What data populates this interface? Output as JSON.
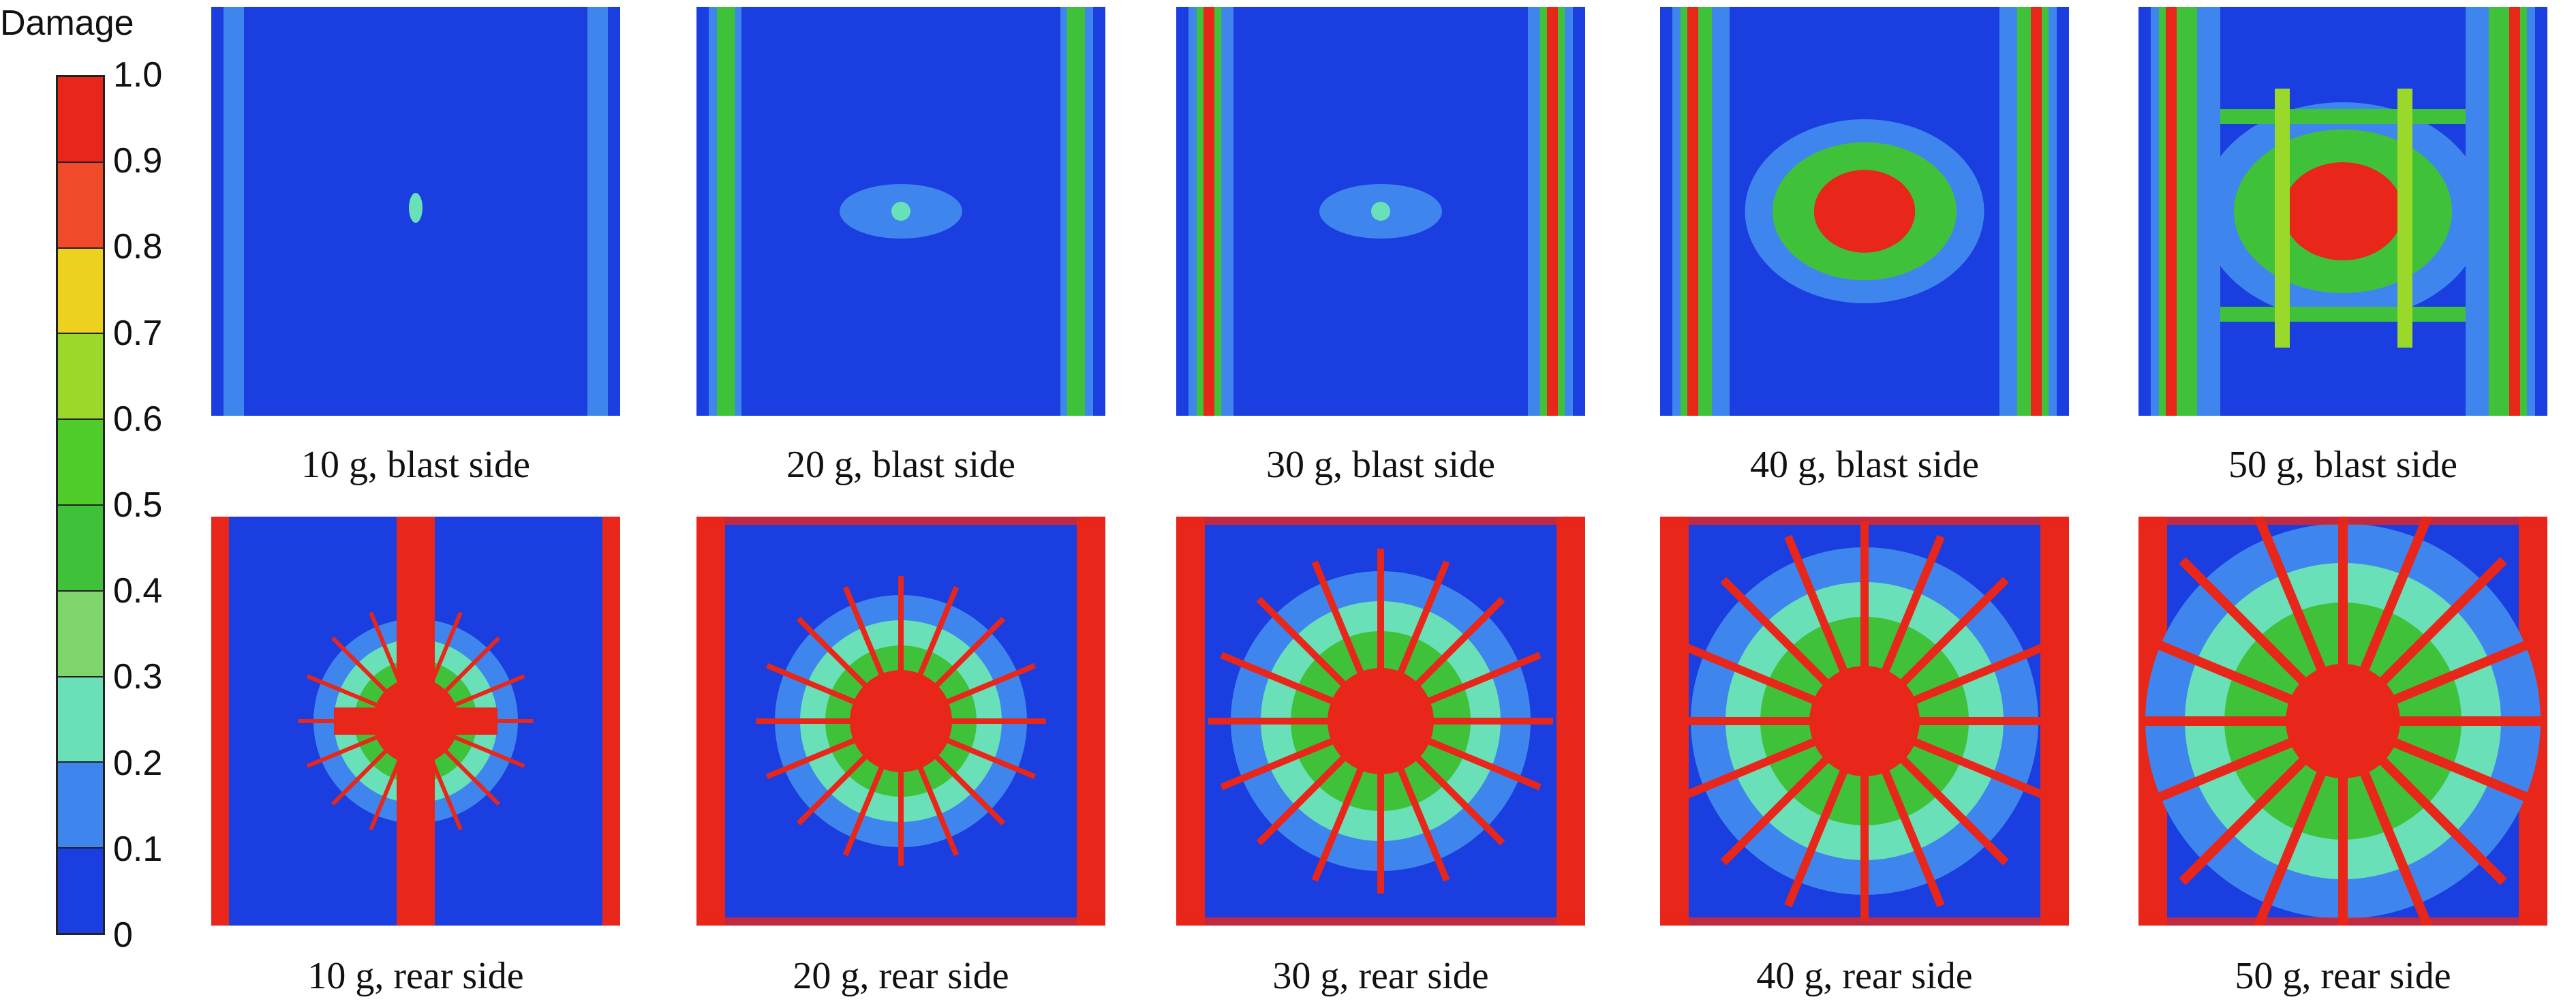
{
  "legend": {
    "title": "Damage",
    "ticks": [
      "1.0",
      "0.9",
      "0.8",
      "0.7",
      "0.6",
      "0.5",
      "0.4",
      "0.3",
      "0.2",
      "0.1",
      "0"
    ],
    "colors": [
      "#e8261a",
      "#f04a2a",
      "#ecd11e",
      "#9ad82a",
      "#4fcc2a",
      "#3fc23a",
      "#7ed66a",
      "#6ae0b8",
      "#3e86ee",
      "#1a3ee0"
    ]
  },
  "panels": [
    {
      "caption": "10 g, blast side",
      "intensity": 0.1
    },
    {
      "caption": "20 g, blast side",
      "intensity": 0.3
    },
    {
      "caption": "30 g, blast side",
      "intensity": 0.45
    },
    {
      "caption": "40 g, blast side",
      "intensity": 0.6
    },
    {
      "caption": "50 g, blast side",
      "intensity": 0.7
    },
    {
      "caption": "10 g, rear side",
      "intensity": 0.55
    },
    {
      "caption": "20 g, rear side",
      "intensity": 0.75
    },
    {
      "caption": "30 g, rear side",
      "intensity": 0.8
    },
    {
      "caption": "40 g, rear side",
      "intensity": 0.85
    },
    {
      "caption": "50 g, rear side",
      "intensity": 0.9
    }
  ]
}
